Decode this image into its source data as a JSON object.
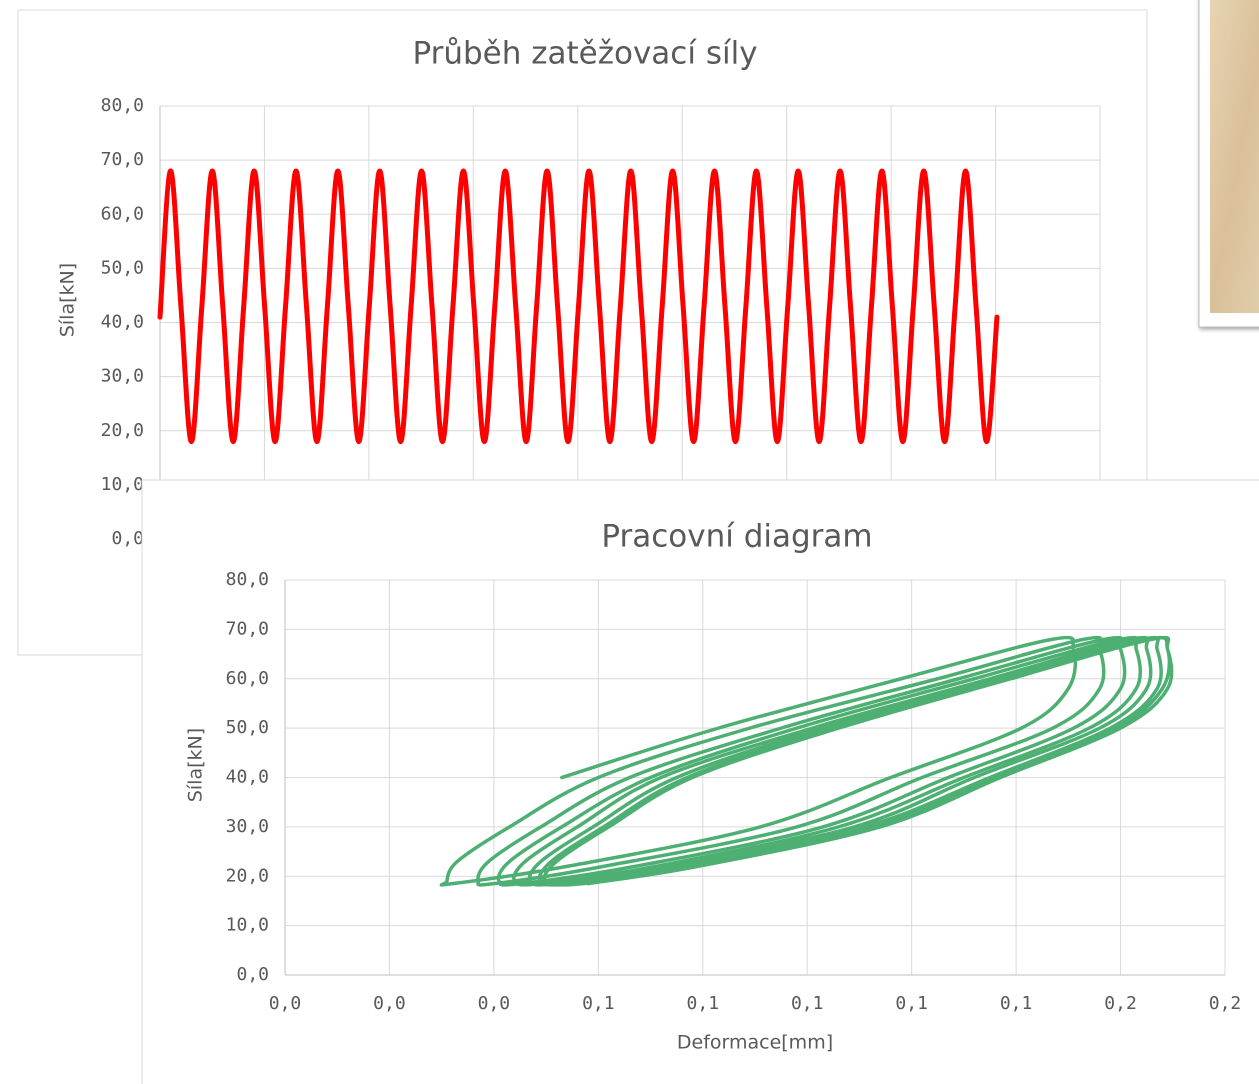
{
  "chart_data": [
    {
      "type": "line",
      "title": "Průběh zatěžovací síly",
      "y_label": "Síla[kN]",
      "color": "#ff0000",
      "grid": true,
      "ylim": [
        0,
        80
      ],
      "yticks": [
        {
          "value": 0,
          "label": "0,0"
        },
        {
          "value": 10,
          "label": "10,0"
        },
        {
          "value": 20,
          "label": "20,0"
        },
        {
          "value": 30,
          "label": "30,0"
        },
        {
          "value": 40,
          "label": "40,0"
        },
        {
          "value": 50,
          "label": "50,0"
        },
        {
          "value": 60,
          "label": "60,0"
        },
        {
          "value": 70,
          "label": "70,0"
        },
        {
          "value": 80,
          "label": "80,0"
        }
      ],
      "values": [
        41,
        68,
        43,
        18,
        43,
        68,
        43,
        18,
        43,
        68,
        43,
        18,
        43,
        68,
        43,
        18,
        43,
        68,
        43,
        18,
        43,
        68,
        43,
        18,
        43,
        68,
        43,
        18,
        43,
        68,
        43,
        18,
        43,
        68,
        43,
        18,
        43,
        68,
        43,
        18,
        43,
        68,
        43,
        18,
        43,
        68,
        43,
        18,
        43,
        68,
        43,
        18,
        43,
        68,
        43,
        18,
        43,
        68,
        43,
        18,
        43,
        68,
        43,
        18,
        43,
        68,
        43,
        18,
        43,
        68,
        43,
        18,
        43,
        68,
        43,
        18,
        43,
        68,
        43,
        18,
        41
      ]
    },
    {
      "type": "line",
      "title": "Pracovní diagram",
      "x_label": "Deformace[mm]",
      "y_label": "Síla[kN]",
      "color": "#4daf72",
      "grid": true,
      "xlim": [
        0,
        0.18
      ],
      "ylim": [
        0,
        80
      ],
      "xticks": [
        {
          "value": 0,
          "label": "0,0"
        },
        {
          "value": 0.02,
          "label": "0,0"
        },
        {
          "value": 0.04,
          "label": "0,0"
        },
        {
          "value": 0.06,
          "label": "0,1"
        },
        {
          "value": 0.08,
          "label": "0,1"
        },
        {
          "value": 0.1,
          "label": "0,1"
        },
        {
          "value": 0.12,
          "label": "0,1"
        },
        {
          "value": 0.14,
          "label": "0,1"
        },
        {
          "value": 0.16,
          "label": "0,2"
        },
        {
          "value": 0.18,
          "label": "0,2"
        }
      ],
      "yticks": [
        {
          "value": 0,
          "label": "0,0"
        },
        {
          "value": 10,
          "label": "10,0"
        },
        {
          "value": 20,
          "label": "20,0"
        },
        {
          "value": 30,
          "label": "30,0"
        },
        {
          "value": 40,
          "label": "40,0"
        },
        {
          "value": 50,
          "label": "50,0"
        },
        {
          "value": 60,
          "label": "60,0"
        },
        {
          "value": 70,
          "label": "70,0"
        },
        {
          "value": 80,
          "label": "80,0"
        }
      ],
      "x": [
        0.053,
        0.083,
        0.118,
        0.147,
        0.151,
        0.15,
        0.141,
        0.116,
        0.091,
        0.054,
        0.032,
        0.031,
        0.033,
        0.043,
        0.06,
        0.089,
        0.125,
        0.153,
        0.156,
        0.156,
        0.147,
        0.122,
        0.098,
        0.061,
        0.04,
        0.037,
        0.039,
        0.049,
        0.066,
        0.095,
        0.129,
        0.157,
        0.16,
        0.16,
        0.151,
        0.127,
        0.103,
        0.067,
        0.045,
        0.041,
        0.043,
        0.053,
        0.07,
        0.098,
        0.132,
        0.16,
        0.163,
        0.163,
        0.154,
        0.13,
        0.106,
        0.071,
        0.049,
        0.044,
        0.046,
        0.056,
        0.072,
        0.101,
        0.135,
        0.162,
        0.165,
        0.165,
        0.156,
        0.132,
        0.109,
        0.073,
        0.052,
        0.047,
        0.049,
        0.059,
        0.075,
        0.103,
        0.137,
        0.164,
        0.167,
        0.167,
        0.158,
        0.135,
        0.111,
        0.076,
        0.055,
        0.049,
        0.051,
        0.061,
        0.077,
        0.105,
        0.139,
        0.165,
        0.169,
        0.168,
        0.159,
        0.136,
        0.113,
        0.078,
        0.057,
        0.05,
        0.052,
        0.062,
        0.078,
        0.106,
        0.139,
        0.166,
        0.169,
        0.169,
        0.16,
        0.137,
        0.114,
        0.079,
        0.058
      ],
      "values": [
        40,
        50,
        60,
        68,
        66,
        58,
        50,
        40,
        30,
        22,
        18.5,
        19,
        23,
        30,
        40,
        50,
        60,
        68,
        66,
        58,
        50,
        40,
        30,
        22,
        18.5,
        19,
        23,
        30,
        40,
        50,
        60,
        68,
        66,
        58,
        50,
        40,
        30,
        22,
        18.5,
        19,
        23,
        30,
        40,
        50,
        60,
        68,
        66,
        58,
        50,
        40,
        30,
        22,
        18.5,
        19,
        23,
        30,
        40,
        50,
        60,
        68,
        66,
        58,
        50,
        40,
        30,
        22,
        18.5,
        19,
        23,
        30,
        40,
        50,
        60,
        68,
        66,
        58,
        50,
        40,
        30,
        22,
        18.5,
        19,
        23,
        30,
        40,
        50,
        60,
        68,
        66,
        58,
        50,
        40,
        30,
        22,
        18.5,
        19,
        23,
        30,
        40,
        50,
        60,
        68,
        66,
        58,
        50,
        40,
        30,
        22,
        18.5
      ]
    }
  ]
}
